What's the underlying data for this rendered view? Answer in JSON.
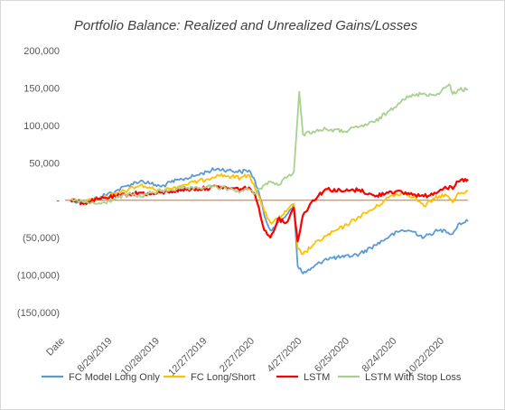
{
  "chart_data": {
    "type": "line",
    "title": "Portfolio Balance: Realized and Unrealized Gains/Losses",
    "xlabel": "",
    "ylabel": "",
    "ylim": [
      -150000,
      200000
    ],
    "yticks": [
      200000,
      150000,
      100000,
      50000,
      0,
      -50000,
      -100000,
      -150000
    ],
    "ytick_labels": [
      "200,000",
      "150,000",
      "100,000",
      "50,000",
      "-",
      "(50,000)",
      "(100,000)",
      "(150,000)"
    ],
    "x_tick_labels": [
      "Date",
      "8/29/2019",
      "10/28/2019",
      "12/27/2019",
      "2/27/2020",
      "4/27/2020",
      "6/25/2020",
      "8/24/2020",
      "10/22/2020"
    ],
    "x_range": [
      "2019-07-01",
      "2020-12-05"
    ],
    "zero_line_color": "#E46C0A",
    "grid": false,
    "legend_position": "bottom",
    "series": [
      {
        "name": "FC Model Long Only",
        "color": "#5B9BD5",
        "points": [
          [
            "2019-07-01",
            0
          ],
          [
            "2019-07-20",
            -3000
          ],
          [
            "2019-08-10",
            5000
          ],
          [
            "2019-08-29",
            12000
          ],
          [
            "2019-09-15",
            20000
          ],
          [
            "2019-10-01",
            26000
          ],
          [
            "2019-10-15",
            22000
          ],
          [
            "2019-10-28",
            18000
          ],
          [
            "2019-11-10",
            24000
          ],
          [
            "2019-11-25",
            28000
          ],
          [
            "2019-12-10",
            32000
          ],
          [
            "2019-12-27",
            38000
          ],
          [
            "2020-01-10",
            42000
          ],
          [
            "2020-01-25",
            40000
          ],
          [
            "2020-02-10",
            38000
          ],
          [
            "2020-02-21",
            40000
          ],
          [
            "2020-02-27",
            30000
          ],
          [
            "2020-03-05",
            10000
          ],
          [
            "2020-03-12",
            -20000
          ],
          [
            "2020-03-20",
            -40000
          ],
          [
            "2020-03-30",
            -30000
          ],
          [
            "2020-04-10",
            -20000
          ],
          [
            "2020-04-20",
            -5000
          ],
          [
            "2020-04-25",
            -88000
          ],
          [
            "2020-05-02",
            -98000
          ],
          [
            "2020-05-15",
            -90000
          ],
          [
            "2020-06-01",
            -78000
          ],
          [
            "2020-06-25",
            -76000
          ],
          [
            "2020-07-15",
            -72000
          ],
          [
            "2020-08-05",
            -60000
          ],
          [
            "2020-08-24",
            -48000
          ],
          [
            "2020-09-10",
            -40000
          ],
          [
            "2020-09-25",
            -42000
          ],
          [
            "2020-10-08",
            -50000
          ],
          [
            "2020-10-22",
            -42000
          ],
          [
            "2020-11-05",
            -40000
          ],
          [
            "2020-11-15",
            -45000
          ],
          [
            "2020-11-22",
            -32000
          ],
          [
            "2020-12-05",
            -28000
          ]
        ]
      },
      {
        "name": "FC Long/Short",
        "color": "#FFC000",
        "points": [
          [
            "2019-07-01",
            0
          ],
          [
            "2019-07-20",
            -2000
          ],
          [
            "2019-08-10",
            4000
          ],
          [
            "2019-08-29",
            8000
          ],
          [
            "2019-09-15",
            14000
          ],
          [
            "2019-10-01",
            20000
          ],
          [
            "2019-10-15",
            16000
          ],
          [
            "2019-10-28",
            12000
          ],
          [
            "2019-11-10",
            16000
          ],
          [
            "2019-11-25",
            20000
          ],
          [
            "2019-12-10",
            24000
          ],
          [
            "2019-12-27",
            28000
          ],
          [
            "2020-01-10",
            34000
          ],
          [
            "2020-01-25",
            32000
          ],
          [
            "2020-02-10",
            30000
          ],
          [
            "2020-02-21",
            34000
          ],
          [
            "2020-02-27",
            22000
          ],
          [
            "2020-03-05",
            5000
          ],
          [
            "2020-03-12",
            -15000
          ],
          [
            "2020-03-20",
            -30000
          ],
          [
            "2020-03-30",
            -25000
          ],
          [
            "2020-04-10",
            -15000
          ],
          [
            "2020-04-20",
            -5000
          ],
          [
            "2020-04-25",
            -65000
          ],
          [
            "2020-05-02",
            -72000
          ],
          [
            "2020-05-15",
            -60000
          ],
          [
            "2020-06-01",
            -48000
          ],
          [
            "2020-06-25",
            -35000
          ],
          [
            "2020-07-15",
            -22000
          ],
          [
            "2020-08-05",
            -10000
          ],
          [
            "2020-08-24",
            5000
          ],
          [
            "2020-09-10",
            10000
          ],
          [
            "2020-09-25",
            5000
          ],
          [
            "2020-10-08",
            -8000
          ],
          [
            "2020-10-22",
            2000
          ],
          [
            "2020-11-05",
            8000
          ],
          [
            "2020-11-15",
            -3000
          ],
          [
            "2020-11-22",
            10000
          ],
          [
            "2020-12-05",
            12000
          ]
        ]
      },
      {
        "name": "LSTM",
        "color": "#FF0000",
        "points": [
          [
            "2019-07-01",
            0
          ],
          [
            "2019-07-20",
            -4000
          ],
          [
            "2019-08-10",
            2000
          ],
          [
            "2019-08-29",
            5000
          ],
          [
            "2019-09-15",
            8000
          ],
          [
            "2019-10-01",
            10000
          ],
          [
            "2019-10-15",
            8000
          ],
          [
            "2019-10-28",
            10000
          ],
          [
            "2019-11-10",
            12000
          ],
          [
            "2019-11-25",
            14000
          ],
          [
            "2019-12-10",
            15000
          ],
          [
            "2019-12-27",
            16000
          ],
          [
            "2020-01-10",
            18000
          ],
          [
            "2020-01-25",
            16000
          ],
          [
            "2020-02-10",
            15000
          ],
          [
            "2020-02-21",
            17000
          ],
          [
            "2020-02-27",
            10000
          ],
          [
            "2020-03-05",
            -10000
          ],
          [
            "2020-03-12",
            -40000
          ],
          [
            "2020-03-20",
            -50000
          ],
          [
            "2020-03-30",
            -25000
          ],
          [
            "2020-04-10",
            -30000
          ],
          [
            "2020-04-20",
            -10000
          ],
          [
            "2020-04-25",
            -55000
          ],
          [
            "2020-05-02",
            -20000
          ],
          [
            "2020-05-15",
            0
          ],
          [
            "2020-06-01",
            15000
          ],
          [
            "2020-06-25",
            12000
          ],
          [
            "2020-07-15",
            14000
          ],
          [
            "2020-08-05",
            5000
          ],
          [
            "2020-08-24",
            12000
          ],
          [
            "2020-09-10",
            10000
          ],
          [
            "2020-09-25",
            8000
          ],
          [
            "2020-10-08",
            5000
          ],
          [
            "2020-10-22",
            10000
          ],
          [
            "2020-11-05",
            18000
          ],
          [
            "2020-11-15",
            15000
          ],
          [
            "2020-11-22",
            25000
          ],
          [
            "2020-12-05",
            28000
          ]
        ]
      },
      {
        "name": "LSTM With Stop Loss",
        "color": "#A9D18E",
        "points": [
          [
            "2019-07-01",
            0
          ],
          [
            "2019-07-20",
            -3000
          ],
          [
            "2019-08-10",
            -5000
          ],
          [
            "2019-08-29",
            2000
          ],
          [
            "2019-09-15",
            8000
          ],
          [
            "2019-10-01",
            5000
          ],
          [
            "2019-10-15",
            10000
          ],
          [
            "2019-10-28",
            12000
          ],
          [
            "2019-11-10",
            14000
          ],
          [
            "2019-11-25",
            16000
          ],
          [
            "2019-12-10",
            15000
          ],
          [
            "2019-12-27",
            18000
          ],
          [
            "2020-01-10",
            17000
          ],
          [
            "2020-01-25",
            15000
          ],
          [
            "2020-02-10",
            12000
          ],
          [
            "2020-02-21",
            15000
          ],
          [
            "2020-02-27",
            8000
          ],
          [
            "2020-03-05",
            15000
          ],
          [
            "2020-03-12",
            20000
          ],
          [
            "2020-03-20",
            25000
          ],
          [
            "2020-03-30",
            20000
          ],
          [
            "2020-04-10",
            30000
          ],
          [
            "2020-04-20",
            38000
          ],
          [
            "2020-04-27",
            145000
          ],
          [
            "2020-05-02",
            88000
          ],
          [
            "2020-05-15",
            92000
          ],
          [
            "2020-06-01",
            95000
          ],
          [
            "2020-06-25",
            92000
          ],
          [
            "2020-07-15",
            98000
          ],
          [
            "2020-08-05",
            105000
          ],
          [
            "2020-08-24",
            120000
          ],
          [
            "2020-09-10",
            135000
          ],
          [
            "2020-09-25",
            140000
          ],
          [
            "2020-10-08",
            143000
          ],
          [
            "2020-10-22",
            140000
          ],
          [
            "2020-11-05",
            150000
          ],
          [
            "2020-11-10",
            155000
          ],
          [
            "2020-11-15",
            142000
          ],
          [
            "2020-11-22",
            148000
          ],
          [
            "2020-12-05",
            148000
          ]
        ]
      }
    ]
  }
}
